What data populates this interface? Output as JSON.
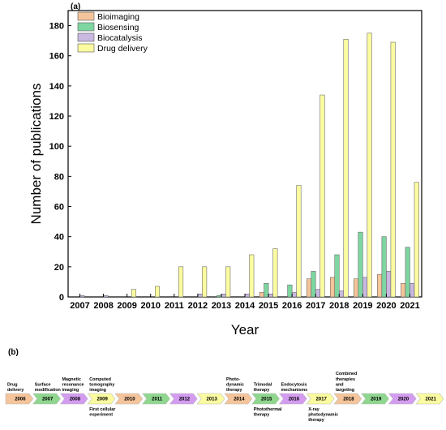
{
  "panel_a_label": "(a)",
  "panel_b_label": "(b)",
  "chart_data": {
    "type": "bar",
    "title": "",
    "xlabel": "Year",
    "ylabel": "Number of publications",
    "ylim": [
      0,
      190
    ],
    "yticks": [
      0,
      20,
      40,
      60,
      80,
      100,
      120,
      140,
      160,
      180
    ],
    "legend_position": "top-left",
    "categories": [
      "2007",
      "2008",
      "2009",
      "2010",
      "2011",
      "2012",
      "2013",
      "2014",
      "2015",
      "2016",
      "2017",
      "2018",
      "2019",
      "2020",
      "2021"
    ],
    "series": [
      {
        "name": "Bioimaging",
        "color": "#f5c49a",
        "values": [
          0,
          0,
          0,
          0,
          0,
          0,
          0,
          0,
          3,
          0,
          12,
          13,
          12,
          15,
          9
        ]
      },
      {
        "name": "Biosensing",
        "color": "#7ed6a0",
        "values": [
          0,
          0,
          0,
          0,
          0,
          0,
          1,
          0,
          9,
          8,
          17,
          28,
          43,
          40,
          33
        ]
      },
      {
        "name": "Biocatalysis",
        "color": "#c9b8e0",
        "values": [
          1,
          1,
          0,
          0,
          0,
          2,
          2,
          2,
          2,
          3,
          5,
          4,
          13,
          17,
          9
        ]
      },
      {
        "name": "Drug delivery",
        "color": "#fbfba0",
        "values": [
          0,
          0,
          5,
          7,
          20,
          20,
          20,
          28,
          32,
          74,
          134,
          171,
          175,
          169,
          76
        ]
      }
    ]
  },
  "timeline": {
    "arrows": [
      {
        "year": "2006",
        "color": "#f5c49a"
      },
      {
        "year": "2007",
        "color": "#8fd68f"
      },
      {
        "year": "2008",
        "color": "#d39cf0"
      },
      {
        "year": "2009",
        "color": "#fbfba0"
      },
      {
        "year": "2010",
        "color": "#f5c49a"
      },
      {
        "year": "2011",
        "color": "#8fd68f"
      },
      {
        "year": "2012",
        "color": "#d39cf0"
      },
      {
        "year": "2013",
        "color": "#fbfba0"
      },
      {
        "year": "2014",
        "color": "#f5c49a"
      },
      {
        "year": "2015",
        "color": "#8fd68f"
      },
      {
        "year": "2016",
        "color": "#d39cf0"
      },
      {
        "year": "2017",
        "color": "#fbfba0"
      },
      {
        "year": "2018",
        "color": "#f5c49a"
      },
      {
        "year": "2019",
        "color": "#8fd68f"
      },
      {
        "year": "2020",
        "color": "#d39cf0"
      },
      {
        "year": "2021",
        "color": "#fbfba0"
      }
    ],
    "notes_above": [
      {
        "index": 0,
        "lines": [
          "Drug",
          "delivery"
        ]
      },
      {
        "index": 1,
        "lines": [
          "Surface",
          "modification"
        ]
      },
      {
        "index": 2,
        "lines": [
          "Magnetic",
          "resonance",
          "imaging"
        ]
      },
      {
        "index": 3,
        "lines": [
          "Computed",
          "tomography",
          "imaging"
        ]
      },
      {
        "index": 8,
        "lines": [
          "Photo-",
          "dynamic",
          "therapy"
        ]
      },
      {
        "index": 9,
        "lines": [
          "Trimodal",
          "therapy"
        ]
      },
      {
        "index": 10,
        "lines": [
          "Endocytosis",
          "mechanisms"
        ]
      },
      {
        "index": 12,
        "lines": [
          "Combined",
          "therapies",
          "and",
          "targeting"
        ]
      }
    ],
    "notes_below": [
      {
        "index": 3,
        "lines": [
          "First cellular",
          "experiment"
        ]
      },
      {
        "index": 9,
        "lines": [
          "Photothermal",
          "therapy"
        ]
      },
      {
        "index": 11,
        "lines": [
          "X-ray",
          "photodynamic",
          "therapy"
        ]
      }
    ]
  }
}
